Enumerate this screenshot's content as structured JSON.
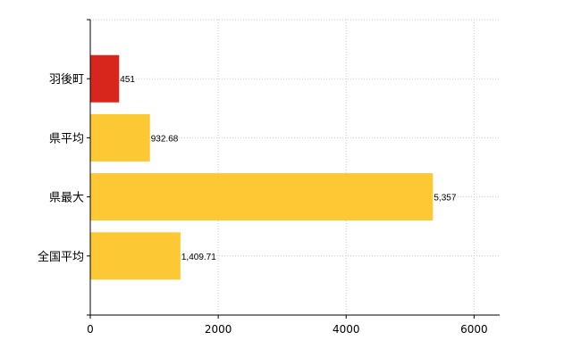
{
  "chart_data": {
    "type": "bar",
    "orientation": "horizontal",
    "categories": [
      "羽後町",
      "県平均",
      "県最大",
      "全国平均"
    ],
    "values": [
      451,
      932.68,
      5357,
      1409.71
    ],
    "value_labels": [
      "451",
      "932.68",
      "5,357",
      "1,409.71"
    ],
    "bar_colors": [
      "#d9261c",
      "#fcc935",
      "#fcc935",
      "#fcc935"
    ],
    "xlim": [
      0,
      6400
    ],
    "xticks": [
      0,
      2000,
      4000,
      6000
    ],
    "xtick_labels": [
      "0",
      "2000",
      "4000",
      "6000"
    ],
    "grid": true
  }
}
